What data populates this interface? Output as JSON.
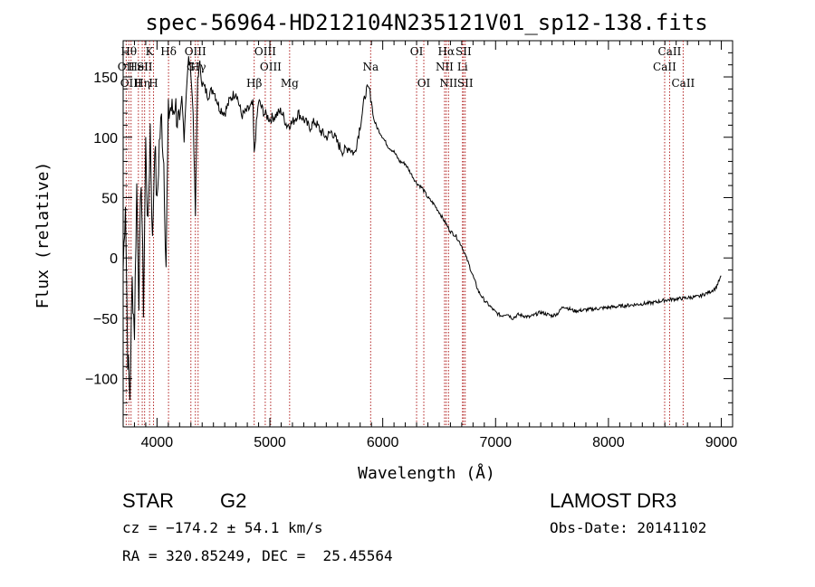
{
  "chart_data": {
    "type": "line",
    "title": "spec-56964-HD212104N235121V01_sp12-138.fits",
    "xlabel": "Wavelength (Å)",
    "ylabel": "Flux (relative)",
    "xlim": [
      3700,
      9100
    ],
    "ylim": [
      -140,
      180
    ],
    "xticks": [
      4000,
      5000,
      6000,
      7000,
      8000,
      9000
    ],
    "yticks": [
      -100,
      -50,
      0,
      50,
      100,
      150
    ],
    "grid": false,
    "series": [
      {
        "color": "#000000",
        "x": [
          3700,
          3720,
          3740,
          3760,
          3780,
          3800,
          3820,
          3840,
          3860,
          3880,
          3900,
          3920,
          3940,
          3960,
          3980,
          4000,
          4020,
          4040,
          4060,
          4080,
          4100,
          4120,
          4140,
          4160,
          4180,
          4200,
          4220,
          4240,
          4260,
          4280,
          4300,
          4320,
          4340,
          4360,
          4380,
          4400,
          4450,
          4500,
          4550,
          4600,
          4650,
          4700,
          4750,
          4800,
          4850,
          4861,
          4880,
          4900,
          4950,
          5000,
          5050,
          5100,
          5150,
          5200,
          5250,
          5300,
          5350,
          5400,
          5450,
          5500,
          5550,
          5600,
          5650,
          5700,
          5750,
          5800,
          5850,
          5880,
          5900,
          5920,
          5950,
          6000,
          6050,
          6100,
          6150,
          6200,
          6250,
          6300,
          6350,
          6400,
          6450,
          6500,
          6550,
          6600,
          6650,
          6700,
          6750,
          6800,
          6850,
          6900,
          6950,
          7000,
          7050,
          7100,
          7150,
          7200,
          7300,
          7400,
          7500,
          7550,
          7600,
          7650,
          7700,
          7800,
          7900,
          8000,
          8100,
          8200,
          8300,
          8400,
          8500,
          8600,
          8700,
          8800,
          8900,
          8950,
          9000
        ],
        "values": [
          -10,
          50,
          -80,
          -115,
          -20,
          -60,
          60,
          -30,
          70,
          -40,
          95,
          20,
          110,
          10,
          100,
          40,
          95,
          115,
          80,
          -5,
          118,
          125,
          120,
          130,
          115,
          110,
          132,
          100,
          140,
          165,
          155,
          120,
          35,
          150,
          160,
          145,
          135,
          140,
          125,
          120,
          132,
          138,
          118,
          122,
          127,
          85,
          110,
          130,
          120,
          115,
          118,
          122,
          110,
          112,
          120,
          115,
          108,
          113,
          105,
          100,
          105,
          95,
          88,
          92,
          86,
          110,
          138,
          140,
          130,
          115,
          108,
          100,
          92,
          88,
          80,
          78,
          70,
          62,
          58,
          50,
          45,
          38,
          30,
          22,
          18,
          10,
          -2,
          -15,
          -28,
          -35,
          -40,
          -45,
          -48,
          -46,
          -50,
          -47,
          -49,
          -45,
          -48,
          -46,
          -40,
          -42,
          -44,
          -43,
          -42,
          -41,
          -40,
          -39,
          -38,
          -37,
          -35,
          -34,
          -33,
          -32,
          -28,
          -25,
          -15
        ]
      }
    ],
    "lines": [
      {
        "wl": 3727,
        "name": "OII",
        "row": 2
      },
      {
        "wl": 3750,
        "name": "Hθ",
        "row": 1
      },
      {
        "wl": 3770,
        "name": "OIII",
        "row": 3
      },
      {
        "wl": 3835,
        "name": "HeI",
        "row": 2
      },
      {
        "wl": 3869,
        "name": "Hη",
        "row": 3
      },
      {
        "wl": 3890,
        "name": "SII",
        "row": 2
      },
      {
        "wl": 3934,
        "name": "K",
        "row": 1
      },
      {
        "wl": 3969,
        "name": "H",
        "row": 3
      },
      {
        "wl": 4102,
        "name": "Hδ",
        "row": 1
      },
      {
        "wl": 4300,
        "name": "G",
        "row": 2
      },
      {
        "wl": 4340,
        "name": "OIII",
        "row": 1
      },
      {
        "wl": 4364,
        "name": "Hγ",
        "row": 2
      },
      {
        "wl": 4861,
        "name": "Hβ",
        "row": 3
      },
      {
        "wl": 4959,
        "name": "OIII",
        "row": 1
      },
      {
        "wl": 5007,
        "name": "OIII",
        "row": 2
      },
      {
        "wl": 5175,
        "name": "Mg",
        "row": 3
      },
      {
        "wl": 5893,
        "name": "Na",
        "row": 2
      },
      {
        "wl": 6300,
        "name": "OI",
        "row": 1
      },
      {
        "wl": 6364,
        "name": "OI",
        "row": 3
      },
      {
        "wl": 6548,
        "name": "NII",
        "row": 2
      },
      {
        "wl": 6563,
        "name": "Hα",
        "row": 1
      },
      {
        "wl": 6583,
        "name": "NII",
        "row": 3
      },
      {
        "wl": 6707,
        "name": "Li",
        "row": 2
      },
      {
        "wl": 6716,
        "name": "SII",
        "row": 1
      },
      {
        "wl": 6731,
        "name": "SII",
        "row": 3
      },
      {
        "wl": 8498,
        "name": "CaII",
        "row": 2
      },
      {
        "wl": 8542,
        "name": "CaII",
        "row": 1
      },
      {
        "wl": 8662,
        "name": "CaII",
        "row": 3
      }
    ]
  },
  "info": {
    "class": "STAR",
    "subclass": "G2",
    "cz": "cz = −174.2 ± 54.1 km/s",
    "radec": "RA = 320.85249, DEC =  25.45564",
    "survey": "LAMOST DR3",
    "obsdate": "Obs-Date: 20141102"
  }
}
